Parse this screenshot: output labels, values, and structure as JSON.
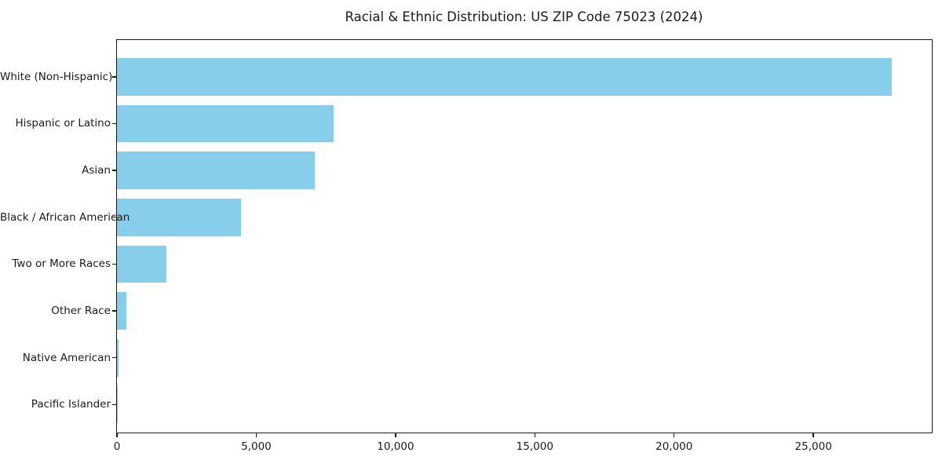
{
  "title": "Racial & Ethnic Distribution: US ZIP Code 75023 (2024)",
  "chart_data": {
    "type": "bar",
    "orientation": "horizontal",
    "title": "Racial & Ethnic Distribution: US ZIP Code 75023 (2024)",
    "xlabel": "",
    "ylabel": "",
    "categories": [
      "White (Non-Hispanic)",
      "Hispanic or Latino",
      "Asian",
      "Black / African American",
      "Two or More Races",
      "Other Race",
      "Native American",
      "Pacific Islander"
    ],
    "values": [
      27800,
      7770,
      7100,
      4450,
      1775,
      340,
      45,
      12
    ],
    "xlim": [
      0,
      29250
    ],
    "xticks": [
      0,
      5000,
      10000,
      15000,
      20000,
      25000
    ],
    "xtick_labels": [
      "0",
      "5,000",
      "10,000",
      "15,000",
      "20,000",
      "25,000"
    ],
    "bar_color": "#87CEEB",
    "axis_color": "#1a1a1a",
    "text_color": "#1a1a1a",
    "background_color": "#ffffff",
    "grid": false,
    "legend": false,
    "sort_order": "descending"
  }
}
